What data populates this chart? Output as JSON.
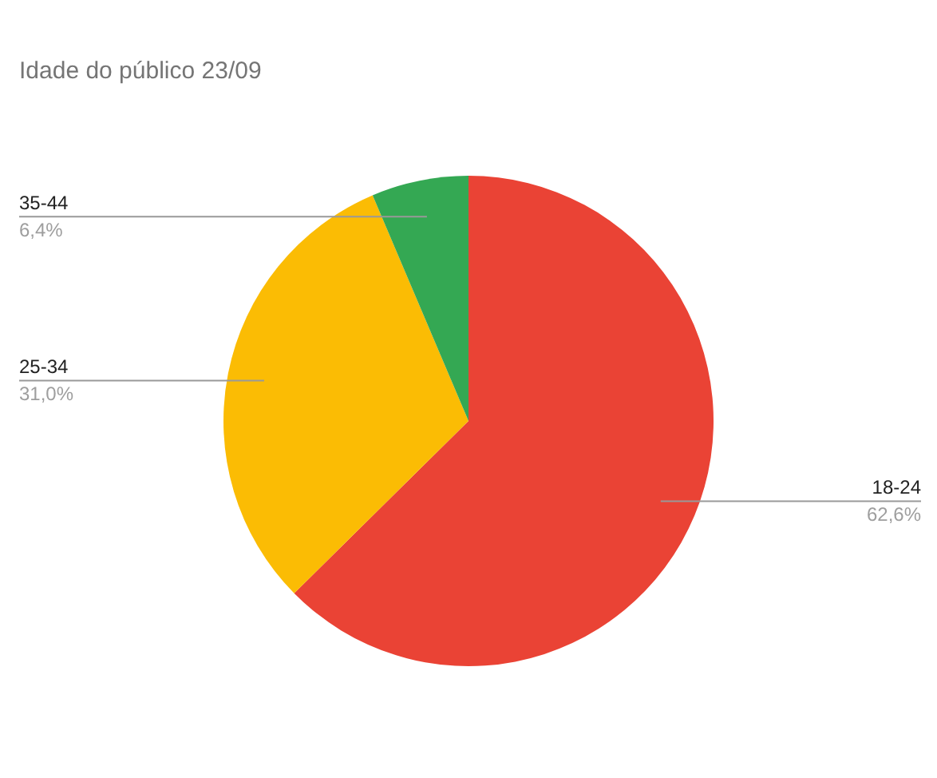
{
  "chart_data": {
    "type": "pie",
    "title": "Idade do público 23/09",
    "categories": [
      "18-24",
      "25-34",
      "35-44"
    ],
    "values": [
      62.6,
      31.0,
      6.4
    ],
    "value_labels": [
      "62,6%",
      "31,0%",
      "6,4%"
    ],
    "colors": [
      "#ea4335",
      "#fbbc04",
      "#34a853"
    ],
    "legend": false
  }
}
